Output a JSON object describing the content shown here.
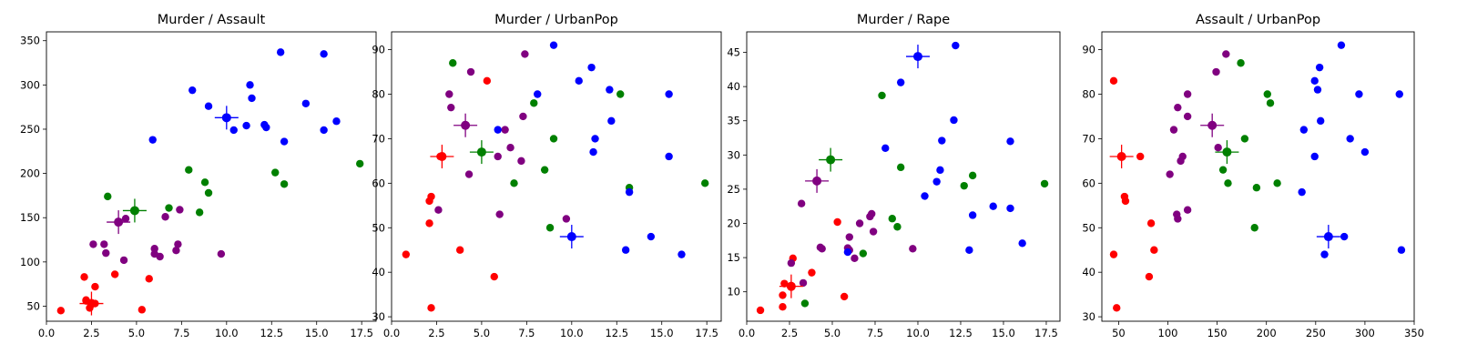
{
  "cluster_colors": [
    "#ff0000",
    "#800080",
    "#008000",
    "#0000ff"
  ],
  "chart_data": [
    {
      "type": "scatter",
      "title": "Murder / Assault",
      "xlabel": "",
      "ylabel": "",
      "xlim": [
        0,
        18.3
      ],
      "ylim": [
        33,
        360
      ],
      "xticks": [
        0,
        2.5,
        5,
        7.5,
        10,
        12.5,
        15,
        17.5
      ],
      "xtick_labels": [
        "0.0",
        "2.5",
        "5.0",
        "7.5",
        "10.0",
        "12.5",
        "15.0",
        "17.5"
      ],
      "yticks": [
        50,
        100,
        150,
        200,
        250,
        300,
        350
      ],
      "ytick_labels": [
        "50",
        "100",
        "150",
        "200",
        "250",
        "300",
        "350"
      ],
      "grid": false,
      "series": [
        {
          "name": "cluster 0",
          "color": "#ff0000",
          "points": [
            [
              0.8,
              45
            ],
            [
              2.1,
              83
            ],
            [
              2.2,
              57
            ],
            [
              2.2,
              56
            ],
            [
              2.4,
              48
            ],
            [
              2.6,
              53
            ],
            [
              2.7,
              72
            ],
            [
              2.7,
              53
            ],
            [
              3.8,
              86
            ],
            [
              5.3,
              46
            ],
            [
              5.7,
              81
            ]
          ]
        },
        {
          "name": "cluster 1",
          "color": "#800080",
          "points": [
            [
              2.6,
              120
            ],
            [
              3.2,
              120
            ],
            [
              3.3,
              110
            ],
            [
              4.3,
              102
            ],
            [
              4.4,
              149
            ],
            [
              6.0,
              115
            ],
            [
              6.0,
              109
            ],
            [
              6.3,
              106
            ],
            [
              6.6,
              151
            ],
            [
              7.2,
              113
            ],
            [
              7.3,
              120
            ],
            [
              7.4,
              159
            ],
            [
              9.7,
              109
            ]
          ]
        },
        {
          "name": "cluster 2",
          "color": "#008000",
          "points": [
            [
              3.4,
              174
            ],
            [
              6.8,
              161
            ],
            [
              7.9,
              204
            ],
            [
              8.5,
              156
            ],
            [
              8.8,
              190
            ],
            [
              9.0,
              178
            ],
            [
              12.7,
              201
            ],
            [
              13.2,
              188
            ],
            [
              17.4,
              211
            ]
          ]
        },
        {
          "name": "cluster 3",
          "color": "#0000ff",
          "points": [
            [
              5.9,
              238
            ],
            [
              8.1,
              294
            ],
            [
              9.0,
              276
            ],
            [
              10.4,
              249
            ],
            [
              11.1,
              254
            ],
            [
              11.3,
              300
            ],
            [
              11.4,
              285
            ],
            [
              12.1,
              255
            ],
            [
              12.2,
              252
            ],
            [
              13.0,
              337
            ],
            [
              13.2,
              236
            ],
            [
              14.4,
              279
            ],
            [
              15.4,
              335
            ],
            [
              15.4,
              249
            ],
            [
              16.1,
              259
            ]
          ]
        }
      ],
      "centroids": [
        {
          "color": "#ff0000",
          "x": 2.5,
          "y": 53
        },
        {
          "color": "#800080",
          "x": 4.0,
          "y": 145
        },
        {
          "color": "#008000",
          "x": 4.9,
          "y": 158
        },
        {
          "color": "#0000ff",
          "x": 10.0,
          "y": 263
        }
      ]
    },
    {
      "type": "scatter",
      "title": "Murder / UrbanPop",
      "xlabel": "",
      "ylabel": "",
      "xlim": [
        0,
        18.3
      ],
      "ylim": [
        29,
        94
      ],
      "xticks": [
        0,
        2.5,
        5,
        7.5,
        10,
        12.5,
        15,
        17.5
      ],
      "xtick_labels": [
        "0.0",
        "2.5",
        "5.0",
        "7.5",
        "10.0",
        "12.5",
        "15.0",
        "17.5"
      ],
      "yticks": [
        30,
        40,
        50,
        60,
        70,
        80,
        90
      ],
      "ytick_labels": [
        "30",
        "40",
        "50",
        "60",
        "70",
        "80",
        "90"
      ],
      "grid": false,
      "series": [
        {
          "name": "cluster 0",
          "color": "#ff0000",
          "points": [
            [
              0.8,
              44
            ],
            [
              2.1,
              51
            ],
            [
              2.1,
              56
            ],
            [
              2.2,
              57
            ],
            [
              2.2,
              32
            ],
            [
              2.7,
              66
            ],
            [
              3.8,
              45
            ],
            [
              5.3,
              83
            ],
            [
              5.7,
              39
            ]
          ]
        },
        {
          "name": "cluster 1",
          "color": "#800080",
          "points": [
            [
              2.6,
              54
            ],
            [
              3.2,
              80
            ],
            [
              3.3,
              77
            ],
            [
              4.3,
              62
            ],
            [
              4.4,
              85
            ],
            [
              5.9,
              66
            ],
            [
              6.0,
              53
            ],
            [
              6.3,
              72
            ],
            [
              6.6,
              68
            ],
            [
              7.2,
              65
            ],
            [
              7.3,
              75
            ],
            [
              7.4,
              89
            ],
            [
              9.7,
              52
            ]
          ]
        },
        {
          "name": "cluster 2",
          "color": "#008000",
          "points": [
            [
              3.4,
              87
            ],
            [
              6.8,
              60
            ],
            [
              7.9,
              78
            ],
            [
              8.5,
              63
            ],
            [
              8.8,
              50
            ],
            [
              9.0,
              70
            ],
            [
              12.7,
              80
            ],
            [
              13.2,
              59
            ],
            [
              17.4,
              60
            ]
          ]
        },
        {
          "name": "cluster 3",
          "color": "#0000ff",
          "points": [
            [
              5.9,
              72
            ],
            [
              8.1,
              80
            ],
            [
              9.0,
              91
            ],
            [
              10.4,
              83
            ],
            [
              11.1,
              86
            ],
            [
              11.2,
              67
            ],
            [
              11.3,
              70
            ],
            [
              12.1,
              81
            ],
            [
              12.2,
              74
            ],
            [
              13.0,
              45
            ],
            [
              13.2,
              58
            ],
            [
              14.4,
              48
            ],
            [
              15.4,
              80
            ],
            [
              15.4,
              66
            ],
            [
              16.1,
              44
            ]
          ]
        }
      ],
      "centroids": [
        {
          "color": "#ff0000",
          "x": 2.8,
          "y": 66
        },
        {
          "color": "#800080",
          "x": 4.1,
          "y": 73
        },
        {
          "color": "#008000",
          "x": 5.0,
          "y": 67
        },
        {
          "color": "#0000ff",
          "x": 10.0,
          "y": 48
        }
      ]
    },
    {
      "type": "scatter",
      "title": "Murder / Rape",
      "xlabel": "",
      "ylabel": "",
      "xlim": [
        0,
        18.3
      ],
      "ylim": [
        5.7,
        48
      ],
      "xticks": [
        0,
        2.5,
        5,
        7.5,
        10,
        12.5,
        15,
        17.5
      ],
      "xtick_labels": [
        "0.0",
        "2.5",
        "5.0",
        "7.5",
        "10.0",
        "12.5",
        "15.0",
        "17.5"
      ],
      "yticks": [
        10,
        15,
        20,
        25,
        30,
        35,
        40,
        45
      ],
      "ytick_labels": [
        "10",
        "15",
        "20",
        "25",
        "30",
        "35",
        "40",
        "45"
      ],
      "grid": false,
      "series": [
        {
          "name": "cluster 0",
          "color": "#ff0000",
          "points": [
            [
              0.8,
              7.3
            ],
            [
              2.1,
              7.8
            ],
            [
              2.1,
              9.5
            ],
            [
              2.2,
              11.2
            ],
            [
              2.7,
              14.9
            ],
            [
              3.8,
              12.8
            ],
            [
              5.3,
              20.2
            ],
            [
              5.7,
              9.3
            ]
          ]
        },
        {
          "name": "cluster 1",
          "color": "#800080",
          "points": [
            [
              2.6,
              14.2
            ],
            [
              3.2,
              22.9
            ],
            [
              3.3,
              11.3
            ],
            [
              4.3,
              16.5
            ],
            [
              4.4,
              16.3
            ],
            [
              5.9,
              16.4
            ],
            [
              6.0,
              18.0
            ],
            [
              6.0,
              16.1
            ],
            [
              6.3,
              14.9
            ],
            [
              6.6,
              20.0
            ],
            [
              7.2,
              21.0
            ],
            [
              7.3,
              21.4
            ],
            [
              7.4,
              18.8
            ],
            [
              9.7,
              16.3
            ]
          ]
        },
        {
          "name": "cluster 2",
          "color": "#008000",
          "points": [
            [
              3.4,
              8.3
            ],
            [
              6.8,
              15.6
            ],
            [
              7.9,
              38.7
            ],
            [
              8.5,
              20.7
            ],
            [
              8.8,
              19.5
            ],
            [
              9.0,
              28.2
            ],
            [
              12.7,
              25.5
            ],
            [
              13.2,
              27.0
            ],
            [
              17.4,
              25.8
            ]
          ]
        },
        {
          "name": "cluster 3",
          "color": "#0000ff",
          "points": [
            [
              5.9,
              15.8
            ],
            [
              8.1,
              31.0
            ],
            [
              9.0,
              40.6
            ],
            [
              10.4,
              24.0
            ],
            [
              11.1,
              26.1
            ],
            [
              11.3,
              27.8
            ],
            [
              11.4,
              32.1
            ],
            [
              12.1,
              35.1
            ],
            [
              12.2,
              46.0
            ],
            [
              13.0,
              16.1
            ],
            [
              13.2,
              21.2
            ],
            [
              14.4,
              22.5
            ],
            [
              15.4,
              32.0
            ],
            [
              15.4,
              22.2
            ],
            [
              16.1,
              17.1
            ]
          ]
        }
      ],
      "centroids": [
        {
          "color": "#ff0000",
          "x": 2.6,
          "y": 10.8
        },
        {
          "color": "#800080",
          "x": 4.1,
          "y": 26.2
        },
        {
          "color": "#008000",
          "x": 4.9,
          "y": 29.3
        },
        {
          "color": "#0000ff",
          "x": 10.0,
          "y": 44.4
        }
      ]
    },
    {
      "type": "scatter",
      "title": "Assault / UrbanPop",
      "xlabel": "",
      "ylabel": "",
      "xlim": [
        33,
        350
      ],
      "ylim": [
        29,
        94
      ],
      "xticks": [
        50,
        100,
        150,
        200,
        250,
        300,
        350
      ],
      "xtick_labels": [
        "50",
        "100",
        "150",
        "200",
        "250",
        "300",
        "350"
      ],
      "yticks": [
        30,
        40,
        50,
        60,
        70,
        80,
        90
      ],
      "ytick_labels": [
        "30",
        "40",
        "50",
        "60",
        "70",
        "80",
        "90"
      ],
      "grid": false,
      "series": [
        {
          "name": "cluster 0",
          "color": "#ff0000",
          "points": [
            [
              45,
              83
            ],
            [
              45,
              44
            ],
            [
              48,
              32
            ],
            [
              53,
              66
            ],
            [
              56,
              57
            ],
            [
              57,
              56
            ],
            [
              72,
              66
            ],
            [
              81,
              39
            ],
            [
              83,
              51
            ],
            [
              86,
              45
            ]
          ]
        },
        {
          "name": "cluster 1",
          "color": "#800080",
          "points": [
            [
              102,
              62
            ],
            [
              106,
              72
            ],
            [
              109,
              53
            ],
            [
              110,
              52
            ],
            [
              110,
              77
            ],
            [
              113,
              65
            ],
            [
              115,
              66
            ],
            [
              120,
              80
            ],
            [
              120,
              54
            ],
            [
              120,
              75
            ],
            [
              149,
              85
            ],
            [
              151,
              68
            ],
            [
              159,
              89
            ]
          ]
        },
        {
          "name": "cluster 2",
          "color": "#008000",
          "points": [
            [
              156,
              63
            ],
            [
              161,
              60
            ],
            [
              174,
              87
            ],
            [
              178,
              70
            ],
            [
              188,
              50
            ],
            [
              190,
              59
            ],
            [
              201,
              80
            ],
            [
              204,
              78
            ],
            [
              211,
              60
            ]
          ]
        },
        {
          "name": "cluster 3",
          "color": "#0000ff",
          "points": [
            [
              236,
              58
            ],
            [
              238,
              72
            ],
            [
              249,
              83
            ],
            [
              249,
              66
            ],
            [
              252,
              81
            ],
            [
              254,
              86
            ],
            [
              255,
              74
            ],
            [
              259,
              44
            ],
            [
              279,
              48
            ],
            [
              276,
              91
            ],
            [
              285,
              70
            ],
            [
              294,
              80
            ],
            [
              300,
              67
            ],
            [
              335,
              80
            ],
            [
              337,
              45
            ]
          ]
        }
      ],
      "centroids": [
        {
          "color": "#ff0000",
          "x": 53,
          "y": 66
        },
        {
          "color": "#800080",
          "x": 145,
          "y": 73
        },
        {
          "color": "#008000",
          "x": 160,
          "y": 67
        },
        {
          "color": "#0000ff",
          "x": 263,
          "y": 48
        }
      ]
    }
  ]
}
